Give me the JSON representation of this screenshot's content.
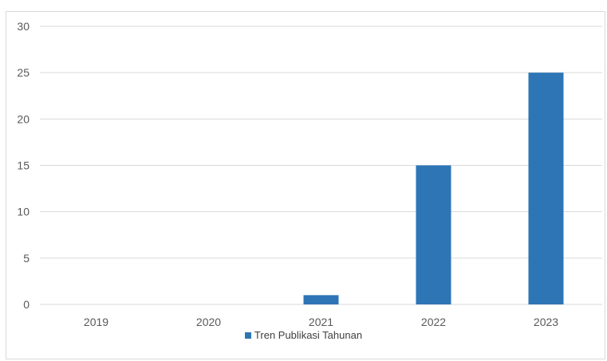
{
  "chart_data": {
    "type": "bar",
    "categories": [
      "2019",
      "2020",
      "2021",
      "2022",
      "2023"
    ],
    "series": [
      {
        "name": "Tren Publikasi Tahunan",
        "values": [
          0,
          0,
          1,
          15,
          25
        ],
        "color": "#2e75b6"
      }
    ],
    "ylim": [
      0,
      30
    ],
    "yticks": [
      "0",
      "5",
      "10",
      "15",
      "20",
      "25",
      "30"
    ],
    "grid": true,
    "legend_position": "bottom"
  }
}
